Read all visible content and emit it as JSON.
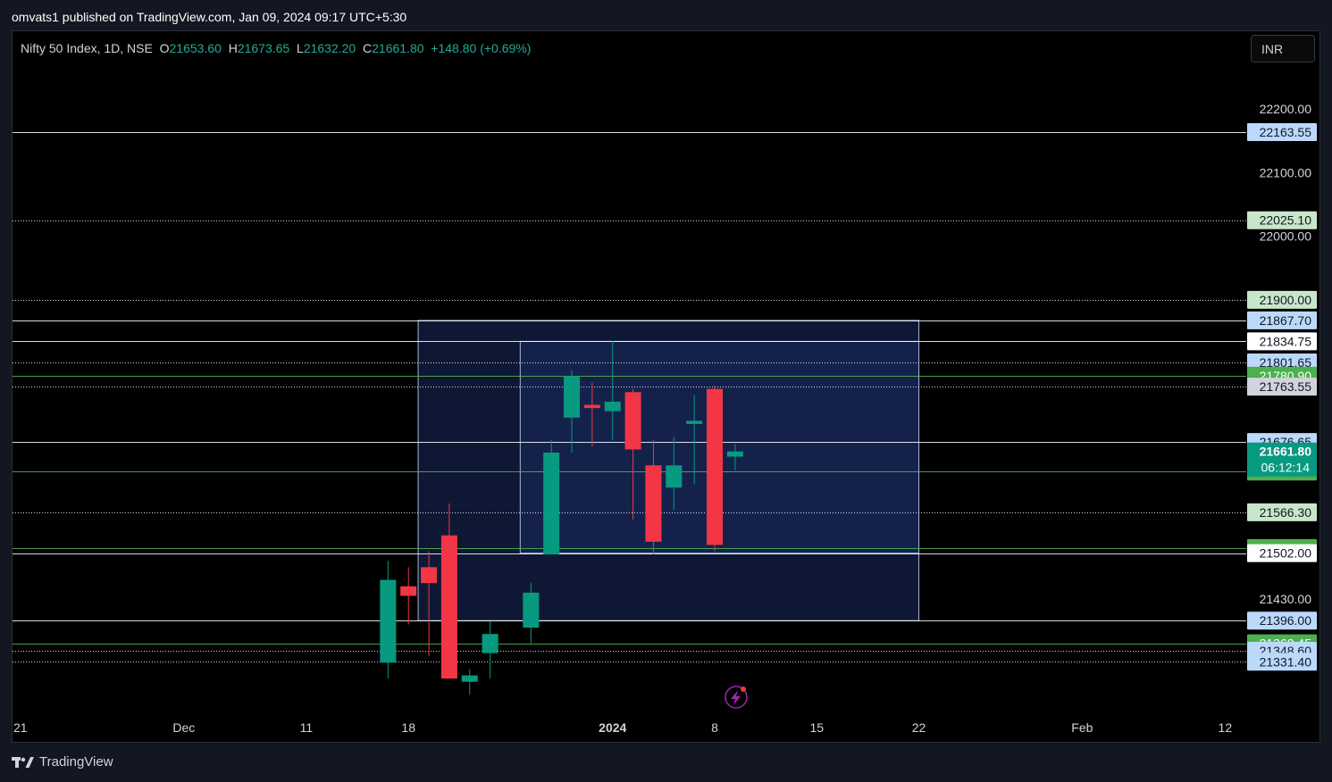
{
  "header": {
    "text": "omvats1 published on TradingView.com, Jan 09, 2024 09:17 UTC+5:30"
  },
  "legend": {
    "symbol": "Nifty 50 Index, 1D, NSE",
    "o_label": "O",
    "o_value": "21653.60",
    "h_label": "H",
    "h_value": "21673.65",
    "l_label": "L",
    "l_value": "21632.20",
    "c_label": "C",
    "c_value": "21661.80",
    "change": "+148.80 (+0.69%)"
  },
  "currency": {
    "label": "INR"
  },
  "footer": {
    "brand": "TradingView"
  },
  "colors": {
    "up": "#089981",
    "down": "#f23645",
    "legend_value": "#22ab94",
    "white_line": "#ffffff",
    "green_line": "#4caf50",
    "box_fill": "#1a2b5e",
    "box_border": "#a8b4d6",
    "tag_blue": "#bbd9fb",
    "tag_green_light": "#c8e6c9",
    "tag_green": "#4caf50",
    "tag_white": "#ffffff",
    "tag_grey": "#d1d4dc",
    "tag_last": "#089981",
    "replay_icon": "#9c27b0"
  },
  "chart_data": {
    "type": "candlestick",
    "symbol": "Nifty 50 Index",
    "interval": "1D",
    "exchange": "NSE",
    "ylim": [
      21305,
      22260
    ],
    "y_ticks": [
      "22200.00",
      "22100.00",
      "22000.00",
      "21430.00"
    ],
    "x_ticks": [
      {
        "label": "21",
        "date": "2023-11-21",
        "bold": false
      },
      {
        "label": "Dec",
        "date": "2023-12-01",
        "bold": false
      },
      {
        "label": "11",
        "date": "2023-12-11",
        "bold": false
      },
      {
        "label": "18",
        "date": "2023-12-18",
        "bold": false
      },
      {
        "label": "2024",
        "date": "2024-01-01",
        "bold": true
      },
      {
        "label": "8",
        "date": "2024-01-08",
        "bold": false
      },
      {
        "label": "15",
        "date": "2024-01-15",
        "bold": false
      },
      {
        "label": "22",
        "date": "2024-01-22",
        "bold": false
      },
      {
        "label": "Feb",
        "date": "2024-02-01",
        "bold": false
      },
      {
        "label": "12",
        "date": "2024-02-12",
        "bold": false
      }
    ],
    "candles": [
      {
        "date": "2023-12-15",
        "o": 21330,
        "h": 21490,
        "l": 21305,
        "c": 21460
      },
      {
        "date": "2023-12-18",
        "o": 21450,
        "h": 21480,
        "l": 21390,
        "c": 21435
      },
      {
        "date": "2023-12-19",
        "o": 21480,
        "h": 21505,
        "l": 21340,
        "c": 21455
      },
      {
        "date": "2023-12-20",
        "o": 21530,
        "h": 21580,
        "l": 21305,
        "c": 21305
      },
      {
        "date": "2023-12-21",
        "o": 21300,
        "h": 21320,
        "l": 21280,
        "c": 21310
      },
      {
        "date": "2023-12-22",
        "o": 21345,
        "h": 21395,
        "l": 21305,
        "c": 21375
      },
      {
        "date": "2023-12-26",
        "o": 21385,
        "h": 21455,
        "l": 21360,
        "c": 21440
      },
      {
        "date": "2023-12-27",
        "o": 21500,
        "h": 21680,
        "l": 21500,
        "c": 21660
      },
      {
        "date": "2023-12-28",
        "o": 21715,
        "h": 21790,
        "l": 21660,
        "c": 21780
      },
      {
        "date": "2023-12-29",
        "o": 21735,
        "h": 21770,
        "l": 21670,
        "c": 21730
      },
      {
        "date": "2024-01-01",
        "o": 21725,
        "h": 21835,
        "l": 21680,
        "c": 21740
      },
      {
        "date": "2024-01-02",
        "o": 21755,
        "h": 21760,
        "l": 21555,
        "c": 21665
      },
      {
        "date": "2024-01-03",
        "o": 21640,
        "h": 21680,
        "l": 21500,
        "c": 21520
      },
      {
        "date": "2024-01-04",
        "o": 21605,
        "h": 21685,
        "l": 21570,
        "c": 21640
      },
      {
        "date": "2024-01-05",
        "o": 21705,
        "h": 21750,
        "l": 21610,
        "c": 21710
      },
      {
        "date": "2024-01-08",
        "o": 21760,
        "h": 21765,
        "l": 21505,
        "c": 21515
      },
      {
        "date": "2024-01-09",
        "o": 21653.6,
        "h": 21673.65,
        "l": 21632.2,
        "c": 21661.8
      }
    ],
    "horizontal_lines": [
      {
        "price": 22163.55,
        "label": "22163.55",
        "style": "solid",
        "color": "white",
        "tag": "blue"
      },
      {
        "price": 22025.1,
        "label": "22025.10",
        "style": "dotted",
        "color": "white",
        "tag": "green_light"
      },
      {
        "price": 21900.0,
        "label": "21900.00",
        "style": "dotted",
        "color": "white",
        "tag": "green_light"
      },
      {
        "price": 21867.7,
        "label": "21867.70",
        "style": "solid",
        "color": "white",
        "tag": "blue"
      },
      {
        "price": 21834.75,
        "label": "21834.75",
        "style": "solid",
        "color": "white",
        "tag": "white"
      },
      {
        "price": 21801.65,
        "label": "21801.65",
        "style": "dotted",
        "color": "white",
        "tag": "blue"
      },
      {
        "price": 21780.9,
        "label": "21780.90",
        "style": "solid",
        "color": "green",
        "tag": "green"
      },
      {
        "price": 21763.55,
        "label": "21763.55",
        "style": "dotted",
        "color": "white",
        "tag": "grey"
      },
      {
        "price": 21676.65,
        "label": "21676.65",
        "style": "solid",
        "color": "white",
        "tag": "blue"
      },
      {
        "price": 21630.3,
        "label": "21630.30",
        "style": "solid",
        "color": "green",
        "tag": "green"
      },
      {
        "price": 21566.3,
        "label": "21566.30",
        "style": "dotted",
        "color": "white",
        "tag": "green_light"
      },
      {
        "price": 21510.15,
        "label": "21510.15",
        "style": "solid",
        "color": "green",
        "tag": "green"
      },
      {
        "price": 21502.0,
        "label": "21502.00",
        "style": "solid",
        "color": "white",
        "tag": "white"
      },
      {
        "price": 21396.0,
        "label": "21396.00",
        "style": "solid",
        "color": "white",
        "tag": "blue"
      },
      {
        "price": 21360.45,
        "label": "21360.45",
        "style": "solid",
        "color": "green",
        "tag": "green"
      },
      {
        "price": 21348.6,
        "label": "21348.60",
        "style": "dotted",
        "color": "white",
        "tag": "blue"
      },
      {
        "price": 21331.4,
        "label": "21331.40",
        "style": "dotted",
        "color": "white",
        "tag": "blue"
      }
    ],
    "last_price": {
      "price": 21661.8,
      "label": "21661.80",
      "countdown": "06:12:14"
    },
    "rectangles": [
      {
        "date_start": "2023-12-19",
        "date_end": "2024-01-22",
        "price_top": 21867.7,
        "price_bottom": 21396.0
      },
      {
        "date_start": "2023-12-26",
        "date_end": "2024-01-20",
        "price_top": 21834.75,
        "price_bottom": 21502.0
      }
    ]
  }
}
